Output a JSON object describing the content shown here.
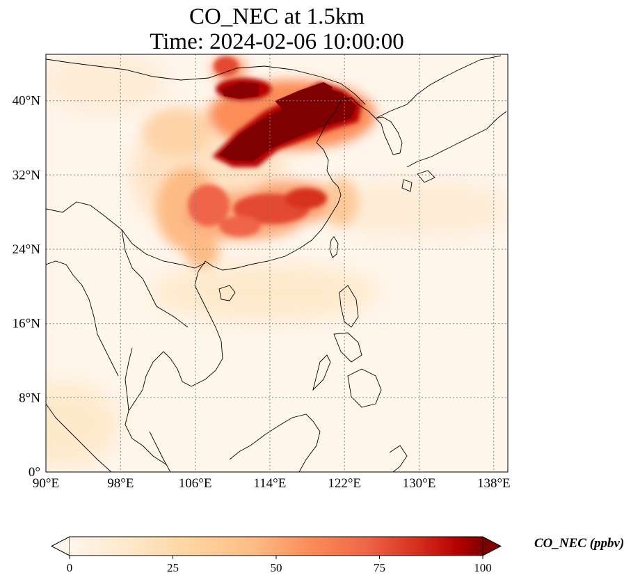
{
  "title": {
    "line1": "CO_NEC at 1.5km",
    "line2": "Time: 2024-02-06 10:00:00"
  },
  "map": {
    "lon_range": [
      90,
      139.5
    ],
    "lat_range": [
      0,
      45
    ],
    "lon_ticks": [
      90,
      98,
      106,
      114,
      122,
      130,
      138
    ],
    "lat_ticks": [
      0,
      8,
      16,
      24,
      32,
      40
    ],
    "lon_tick_labels": [
      "90°E",
      "98°E",
      "106°E",
      "114°E",
      "122°E",
      "130°E",
      "138°E"
    ],
    "lat_tick_labels": [
      "0°",
      "8°N",
      "16°N",
      "24°N",
      "32°N",
      "40°N"
    ],
    "gridlines": true,
    "colormap": "OrRd",
    "colors": {
      "background": "#fff5eb",
      "coastline": "#000000",
      "gridline": "#808080"
    }
  },
  "colorbar": {
    "label": "CO_NEC (ppbv)",
    "range": [
      0,
      100
    ],
    "ticks": [
      0,
      25,
      50,
      75,
      100
    ],
    "tick_labels": [
      "0",
      "25",
      "50",
      "75",
      "100"
    ],
    "extend": "both"
  }
}
